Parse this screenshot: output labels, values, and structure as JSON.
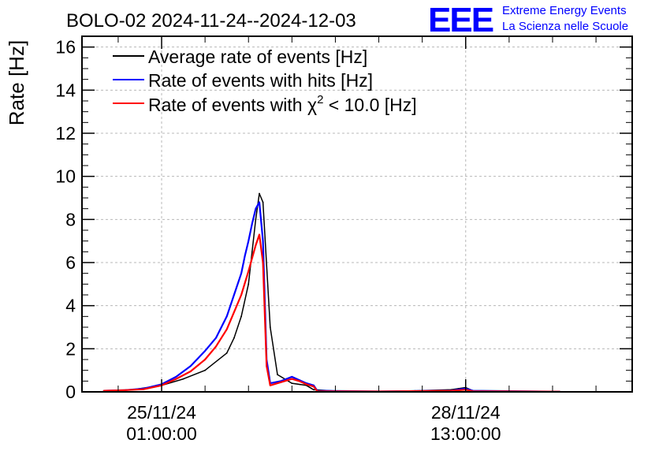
{
  "logo": {
    "mark": "EEE",
    "line1": "Extreme Energy Events",
    "line2": "La Scienza nelle Scuole"
  },
  "chart_data": {
    "type": "line",
    "title": "BOLO-02 2024-11-24--2024-12-03",
    "xlabel": "",
    "ylabel": "Rate [Hz]",
    "ylim": [
      0,
      16.5
    ],
    "xlim_hours": [
      -22,
      130
    ],
    "grid": true,
    "legend_position": "top-left",
    "yticks": [
      0,
      2,
      4,
      6,
      8,
      10,
      12,
      14,
      16
    ],
    "xticks": [
      {
        "hours": 0,
        "date": "25/11/24",
        "time": "01:00:00"
      },
      {
        "hours": 84,
        "date": "28/11/24",
        "time": "13:00:00"
      }
    ],
    "series": [
      {
        "name": "Average rate of events [Hz]",
        "color": "#000000",
        "x": [
          -16,
          -8,
          0,
          6,
          12,
          18,
          20,
          22,
          24,
          25,
          26,
          27,
          28,
          30,
          32,
          36,
          40,
          42,
          50,
          60,
          70,
          80,
          82,
          84,
          86,
          110
        ],
        "y": [
          0.05,
          0.1,
          0.3,
          0.6,
          1.0,
          1.8,
          2.5,
          3.5,
          5.0,
          6.5,
          8.0,
          9.2,
          8.8,
          3.0,
          0.8,
          0.4,
          0.3,
          0.1,
          0.02,
          0.01,
          0.05,
          0.1,
          0.15,
          0.2,
          0.05,
          0.01
        ]
      },
      {
        "name": "Rate of events with hits [Hz]",
        "color": "#0000ff",
        "x": [
          -16,
          -10,
          -5,
          0,
          4,
          8,
          12,
          15,
          18,
          20,
          22,
          23,
          24,
          25,
          26,
          27,
          28,
          29,
          30,
          33,
          36,
          38,
          40,
          42,
          43,
          60,
          80,
          84,
          86,
          110
        ],
        "y": [
          0.05,
          0.08,
          0.15,
          0.35,
          0.7,
          1.2,
          1.9,
          2.5,
          3.5,
          4.5,
          5.5,
          6.3,
          7.0,
          7.8,
          8.5,
          8.8,
          7.0,
          1.5,
          0.4,
          0.5,
          0.7,
          0.55,
          0.4,
          0.3,
          0.05,
          0.02,
          0.06,
          0.15,
          0.05,
          0.01
        ]
      },
      {
        "name": "Rate of events with χ² < 10.0 [Hz]",
        "color": "#ff0000",
        "x": [
          -16,
          -10,
          -5,
          0,
          4,
          8,
          12,
          15,
          18,
          20,
          22,
          24,
          25,
          26,
          27,
          28,
          29,
          30,
          33,
          36,
          38,
          40,
          42,
          43,
          60,
          80,
          84,
          86,
          110
        ],
        "y": [
          0.05,
          0.08,
          0.12,
          0.3,
          0.6,
          0.95,
          1.5,
          2.1,
          2.9,
          3.7,
          4.5,
          5.6,
          6.2,
          6.8,
          7.3,
          6.0,
          1.2,
          0.3,
          0.45,
          0.6,
          0.5,
          0.35,
          0.25,
          0.03,
          0.02,
          0.05,
          0.1,
          0.03,
          0.01
        ]
      }
    ],
    "legend": [
      {
        "label": "Average rate of events [Hz]",
        "sup": ""
      },
      {
        "label": "Rate of events with hits [Hz]",
        "sup": ""
      },
      {
        "label": "Rate of events with χ",
        "sup": "2",
        "suffix": " < 10.0 [Hz]"
      }
    ]
  }
}
